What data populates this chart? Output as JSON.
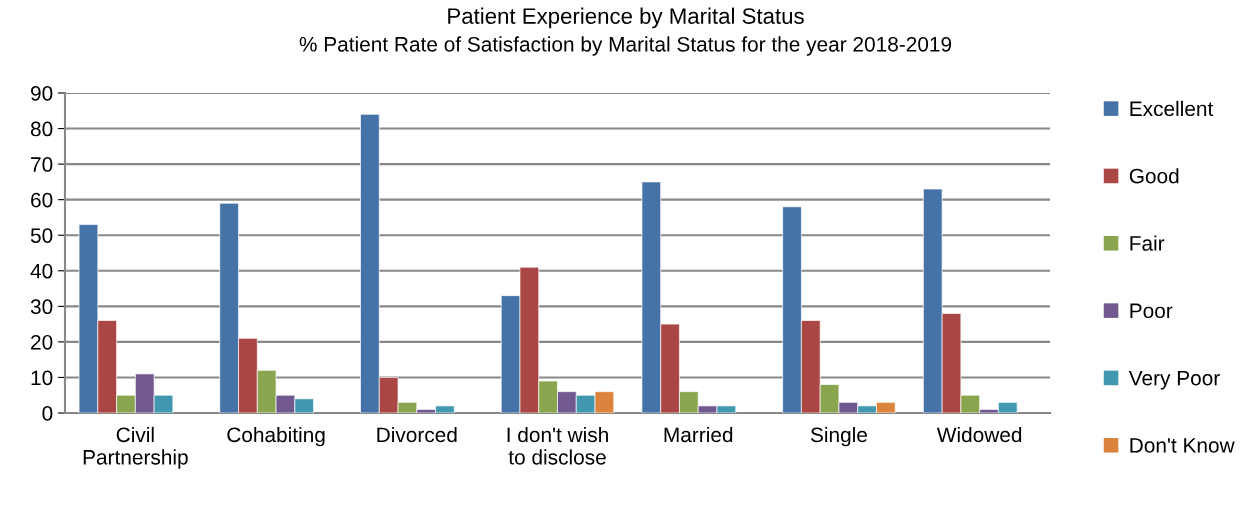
{
  "chart_data": {
    "type": "bar",
    "title": "Patient Experience by Marital Status",
    "subtitle": "% Patient Rate of Satisfaction by Marital Status for the year 2018-2019",
    "categories": [
      "Civil\nPartnership",
      "Cohabiting",
      "Divorced",
      "I don't wish\nto disclose",
      "Married",
      "Single",
      "Widowed"
    ],
    "series": [
      {
        "name": "Excellent",
        "color": "#4572a7",
        "values": [
          53,
          59,
          84,
          33,
          65,
          58,
          63
        ]
      },
      {
        "name": "Good",
        "color": "#aa4643",
        "values": [
          26,
          21,
          10,
          41,
          25,
          26,
          28
        ]
      },
      {
        "name": "Fair",
        "color": "#89a54e",
        "values": [
          5,
          12,
          3,
          9,
          6,
          8,
          5
        ]
      },
      {
        "name": "Poor",
        "color": "#71588f",
        "values": [
          11,
          5,
          1,
          6,
          2,
          3,
          1
        ]
      },
      {
        "name": "Very Poor",
        "color": "#4198af",
        "values": [
          5,
          4,
          2,
          5,
          2,
          2,
          3
        ]
      },
      {
        "name": "Don't Know",
        "color": "#db843d",
        "values": [
          null,
          null,
          null,
          6,
          null,
          3,
          null
        ]
      }
    ],
    "ylim": [
      0,
      90
    ],
    "yticks": [
      0,
      10,
      20,
      30,
      40,
      50,
      60,
      70,
      80,
      90
    ],
    "grid": "y",
    "legend": "right"
  }
}
